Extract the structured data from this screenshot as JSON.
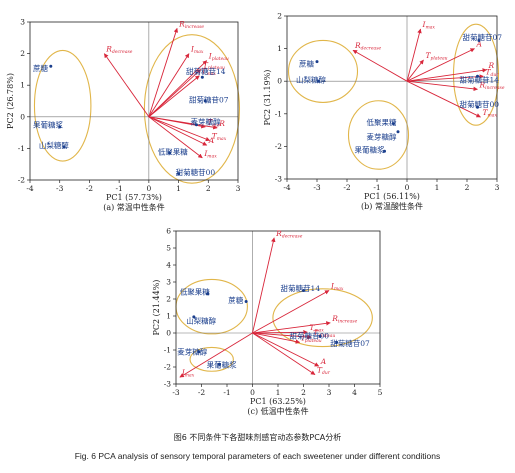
{
  "caption_cn": "图6 不同条件下各甜味剂感官动态参数PCA分析",
  "caption_en": "Fig. 6 PCA analysis of sensory temporal parameters of each sweetener under different conditions",
  "colors": {
    "loading": "#d8263a",
    "score": "#1a3e8c",
    "ellipse": "#e1b64a",
    "axis": "#222222",
    "zero": "#777777"
  },
  "chart_data": [
    {
      "type": "scatter",
      "subtitle": "(a) 常温中性条件",
      "xlabel": "PC1 (57.73%)",
      "ylabel": "PC2 (26.78%)",
      "xlim": [
        -4,
        3
      ],
      "ylim": [
        -2,
        3
      ],
      "xticks": [
        -4,
        -3,
        -2,
        -1,
        0,
        1,
        2,
        3
      ],
      "yticks": [
        -2,
        -1,
        0,
        1,
        2,
        3
      ],
      "loadings": [
        {
          "label": "R",
          "sub": "increase",
          "x": 0.95,
          "y": 2.8
        },
        {
          "label": "R",
          "sub": "decrease",
          "x": -1.5,
          "y": 2.0
        },
        {
          "label": "I",
          "sub": "max",
          "x": 1.35,
          "y": 2.0
        },
        {
          "label": "I",
          "sub": "plateau",
          "x": 1.95,
          "y": 1.78
        },
        {
          "label": "T",
          "sub": "plateau",
          "x": 1.75,
          "y": 1.5
        },
        {
          "label": "T",
          "sub": "max",
          "x": 1.7,
          "y": 1.3
        },
        {
          "label": "A",
          "sub": "",
          "x": 1.95,
          "y": -0.9
        },
        {
          "label": "R",
          "sub": "",
          "x": 2.3,
          "y": -0.35
        },
        {
          "label": "T",
          "sub": "dur",
          "x": 1.9,
          "y": -0.32
        },
        {
          "label": "T",
          "sub": "max",
          "x": 2.05,
          "y": -0.75
        },
        {
          "label": "I",
          "sub": "max",
          "x": 1.8,
          "y": -1.3
        }
      ],
      "scores": [
        {
          "label": "蔗糖",
          "x": -3.3,
          "y": 1.6,
          "lx": -3.9,
          "ly": 1.55
        },
        {
          "label": "果葡糖浆",
          "x": -3.0,
          "y": -0.32,
          "lx": -3.9,
          "ly": -0.25
        },
        {
          "label": "山梨糖醇",
          "x": -2.85,
          "y": -0.95,
          "lx": -3.7,
          "ly": -0.9
        },
        {
          "label": "甜菊糖苷14",
          "x": 1.8,
          "y": 1.25,
          "lx": 1.25,
          "ly": 1.45
        },
        {
          "label": "甜菊糖苷07",
          "x": 1.9,
          "y": 0.5,
          "lx": 1.35,
          "ly": 0.55
        },
        {
          "label": "麦芽糖醇",
          "x": 1.6,
          "y": -0.25,
          "lx": 1.4,
          "ly": -0.15
        },
        {
          "label": "低聚果糖",
          "x": 0.7,
          "y": -1.15,
          "lx": 0.3,
          "ly": -1.1
        },
        {
          "label": "甜菊糖苷00",
          "x": 1.0,
          "y": -1.8,
          "lx": 0.9,
          "ly": -1.75
        }
      ],
      "ellipses": [
        {
          "cx": -2.9,
          "cy": 0.35,
          "rx": 0.95,
          "ry": 1.75
        },
        {
          "cx": 1.45,
          "cy": 0.25,
          "rx": 1.6,
          "ry": 2.35
        }
      ]
    },
    {
      "type": "scatter",
      "subtitle": "(b) 常温酸性条件",
      "xlabel": "PC1 (56.11%)",
      "ylabel": "PC2 (31.19%)",
      "xlim": [
        -4,
        3
      ],
      "ylim": [
        -3,
        2
      ],
      "xticks": [
        -4,
        -3,
        -2,
        -1,
        0,
        1,
        2,
        3
      ],
      "yticks": [
        -3,
        -2,
        -1,
        0,
        1,
        2
      ],
      "loadings": [
        {
          "label": "I",
          "sub": "max",
          "x": 0.45,
          "y": 1.6
        },
        {
          "label": "R",
          "sub": "decrease",
          "x": -1.8,
          "y": 0.95
        },
        {
          "label": "T",
          "sub": "plateau",
          "x": 0.55,
          "y": 0.65
        },
        {
          "label": "A",
          "sub": "",
          "x": 2.25,
          "y": 1.0
        },
        {
          "label": "R",
          "sub": "",
          "x": 2.65,
          "y": 0.35
        },
        {
          "label": "T",
          "sub": "dur",
          "x": 2.55,
          "y": 0.15
        },
        {
          "label": "R",
          "sub": "increase",
          "x": 2.35,
          "y": -0.25
        },
        {
          "label": "T",
          "sub": "max",
          "x": 2.45,
          "y": -1.1
        }
      ],
      "scores": [
        {
          "label": "蔗糖",
          "x": -3.0,
          "y": 0.6,
          "lx": -3.6,
          "ly": 0.55
        },
        {
          "label": "山梨糖醇",
          "x": -2.95,
          "y": 0.0,
          "lx": -3.7,
          "ly": 0.05
        },
        {
          "label": "甜菊糖苷07",
          "x": 2.4,
          "y": 1.25,
          "lx": 1.85,
          "ly": 1.35
        },
        {
          "label": "甜菊糖苷14",
          "x": 2.35,
          "y": 0.15,
          "lx": 1.75,
          "ly": 0.05
        },
        {
          "label": "甜菊糖苷00",
          "x": 2.35,
          "y": -0.8,
          "lx": 1.75,
          "ly": -0.7
        },
        {
          "label": "低聚果糖",
          "x": -0.45,
          "y": -1.3,
          "lx": -1.35,
          "ly": -1.25
        },
        {
          "label": "麦芽糖醇",
          "x": -0.3,
          "y": -1.55,
          "lx": -1.35,
          "ly": -1.7
        },
        {
          "label": "果葡糖浆",
          "x": -0.75,
          "y": -2.15,
          "lx": -1.75,
          "ly": -2.1
        }
      ],
      "ellipses": [
        {
          "cx": -2.8,
          "cy": 0.3,
          "rx": 1.15,
          "ry": 0.95
        },
        {
          "cx": -0.95,
          "cy": -1.65,
          "rx": 1.0,
          "ry": 1.05
        },
        {
          "cx": 2.3,
          "cy": 0.2,
          "rx": 0.75,
          "ry": 1.55
        }
      ]
    },
    {
      "type": "scatter",
      "subtitle": "(c) 低温中性条件",
      "xlabel": "PC1 (63.25%)",
      "ylabel": "PC2 (21.44%)",
      "xlim": [
        -3,
        5
      ],
      "ylim": [
        -3,
        6
      ],
      "xticks": [
        -3,
        -2,
        -1,
        0,
        1,
        2,
        3,
        4,
        5
      ],
      "yticks": [
        -3,
        -2,
        -1,
        0,
        1,
        2,
        3,
        4,
        5,
        6
      ],
      "loadings": [
        {
          "label": "R",
          "sub": "decrease",
          "x": 0.85,
          "y": 5.6
        },
        {
          "label": "I",
          "sub": "max",
          "x": 3.0,
          "y": 2.5
        },
        {
          "label": "R",
          "sub": "increase",
          "x": 3.05,
          "y": 0.6
        },
        {
          "label": "T",
          "sub": "max",
          "x": 2.15,
          "y": 0.05
        },
        {
          "label": "T",
          "sub": "plateau",
          "x": 2.3,
          "y": -0.25
        },
        {
          "label": "I",
          "sub": "plateau",
          "x": 1.85,
          "y": -0.55
        },
        {
          "label": "A",
          "sub": "",
          "x": 2.6,
          "y": -1.95
        },
        {
          "label": "T",
          "sub": "dur",
          "x": 2.45,
          "y": -2.45
        },
        {
          "label": "I",
          "sub": "max",
          "x": -2.85,
          "y": -2.6
        }
      ],
      "scores": [
        {
          "label": "低聚果糖",
          "x": -1.75,
          "y": 2.3,
          "lx": -2.85,
          "ly": 2.45
        },
        {
          "label": "蔗糖",
          "x": -0.25,
          "y": 1.85,
          "lx": -0.95,
          "ly": 1.95
        },
        {
          "label": "山梨糖醇",
          "x": -2.3,
          "y": 0.95,
          "lx": -2.6,
          "ly": 0.75
        },
        {
          "label": "甜菊糖苷14",
          "x": 2.0,
          "y": 2.5,
          "lx": 1.1,
          "ly": 2.65
        },
        {
          "label": "甜菊糖苷00",
          "x": 2.65,
          "y": -0.2,
          "lx": 1.45,
          "ly": -0.15
        },
        {
          "label": "甜菊糖苷07",
          "x": 3.3,
          "y": -0.55,
          "lx": 3.05,
          "ly": -0.6
        },
        {
          "label": "麦芽糖醇",
          "x": -2.1,
          "y": -1.1,
          "lx": -2.95,
          "ly": -1.1
        },
        {
          "label": "果葡糖浆",
          "x": -1.3,
          "y": -1.85,
          "lx": -1.8,
          "ly": -1.85
        }
      ],
      "ellipses": [
        {
          "cx": -1.6,
          "cy": 1.55,
          "rx": 1.4,
          "ry": 1.6
        },
        {
          "cx": -1.6,
          "cy": -1.55,
          "rx": 0.85,
          "ry": 0.7
        },
        {
          "cx": 2.75,
          "cy": 0.9,
          "rx": 1.95,
          "ry": 1.7
        }
      ]
    }
  ]
}
